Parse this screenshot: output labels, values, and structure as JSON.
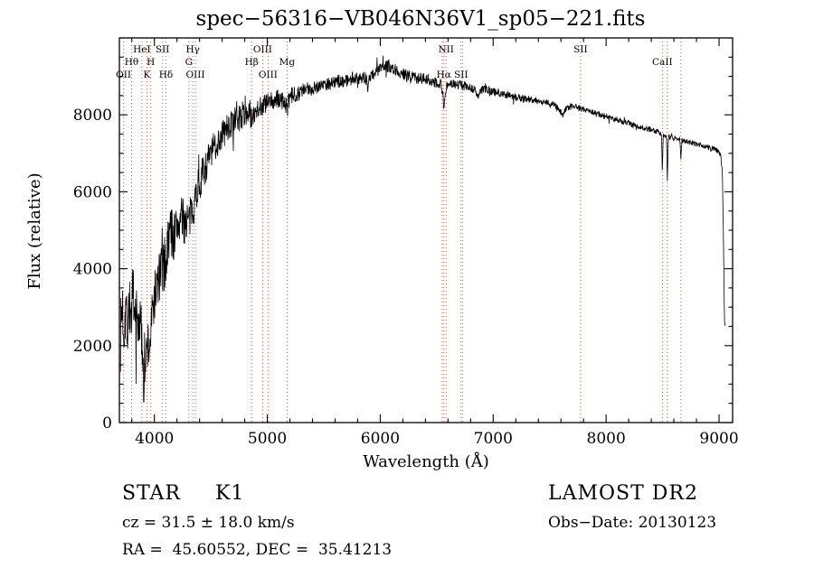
{
  "chart_data": {
    "type": "line",
    "title": "spec−56316−VB046N36V1_sp05−221.fits",
    "xlabel": "Wavelength (Å)",
    "ylabel": "Flux (relative)",
    "xlim": [
      3690,
      9120
    ],
    "ylim": [
      0,
      10000
    ],
    "x_ticks": [
      4000,
      5000,
      6000,
      7000,
      8000,
      9000
    ],
    "y_ticks": [
      0,
      2000,
      4000,
      6000,
      8000
    ],
    "x_minor_step": 200,
    "y_minor_step": 500,
    "grid": false,
    "legend": "none",
    "line_color": "#000000",
    "marker_line_color": "#a85a4a",
    "noise_seed": 7,
    "line_markers": [
      {
        "wavelength": 3727,
        "label": "OII",
        "row": 2
      },
      {
        "wavelength": 3798,
        "label": "Hθ",
        "row": 1
      },
      {
        "wavelength": 3889,
        "label": "HeI",
        "row": 0
      },
      {
        "wavelength": 3934,
        "label": "K",
        "row": 2
      },
      {
        "wavelength": 3968,
        "label": "H",
        "row": 1
      },
      {
        "wavelength": 4072,
        "label": "SII",
        "row": 0
      },
      {
        "wavelength": 4102,
        "label": "Hδ",
        "row": 2
      },
      {
        "wavelength": 4305,
        "label": "G",
        "row": 1
      },
      {
        "wavelength": 4340,
        "label": "Hγ",
        "row": 0
      },
      {
        "wavelength": 4363,
        "label": "OIII",
        "row": 2
      },
      {
        "wavelength": 4861,
        "label": "Hβ",
        "row": 1
      },
      {
        "wavelength": 4959,
        "label": "OIII",
        "row": 0
      },
      {
        "wavelength": 5007,
        "label": "OIII",
        "row": 2
      },
      {
        "wavelength": 5175,
        "label": "Mg",
        "row": 1
      },
      {
        "wavelength": 6548,
        "label": "",
        "row": -1
      },
      {
        "wavelength": 6563,
        "label": "Hα",
        "row": 2
      },
      {
        "wavelength": 6583,
        "label": "NII",
        "row": 0
      },
      {
        "wavelength": 6716,
        "label": "SII",
        "row": 2
      },
      {
        "wavelength": 6731,
        "label": "",
        "row": -1
      },
      {
        "wavelength": 7774,
        "label": "SII",
        "row": 0
      },
      {
        "wavelength": 8498,
        "label": "CaII",
        "row": 1
      },
      {
        "wavelength": 8542,
        "label": "",
        "row": -1
      },
      {
        "wavelength": 8662,
        "label": "",
        "row": -1
      }
    ],
    "series": [
      {
        "name": "spectrum",
        "envelope": [
          [
            3700,
            2200
          ],
          [
            3715,
            3100
          ],
          [
            3730,
            2400
          ],
          [
            3745,
            3050
          ],
          [
            3760,
            2500
          ],
          [
            3775,
            3150
          ],
          [
            3790,
            2650
          ],
          [
            3805,
            3200
          ],
          [
            3820,
            2500
          ],
          [
            3835,
            2900
          ],
          [
            3850,
            2400
          ],
          [
            3865,
            2800
          ],
          [
            3880,
            2400
          ],
          [
            3895,
            1900
          ],
          [
            3910,
            1600
          ],
          [
            3925,
            1500
          ],
          [
            3940,
            2100
          ],
          [
            3955,
            1900
          ],
          [
            3970,
            2400
          ],
          [
            3985,
            2900
          ],
          [
            4000,
            3300
          ],
          [
            4030,
            3600
          ],
          [
            4060,
            3900
          ],
          [
            4090,
            4100
          ],
          [
            4110,
            4400
          ],
          [
            4140,
            5100
          ],
          [
            4170,
            4800
          ],
          [
            4200,
            5100
          ],
          [
            4230,
            5300
          ],
          [
            4260,
            5200
          ],
          [
            4290,
            5300
          ],
          [
            4310,
            5200
          ],
          [
            4330,
            5500
          ],
          [
            4350,
            5700
          ],
          [
            4380,
            6100
          ],
          [
            4420,
            6400
          ],
          [
            4460,
            6700
          ],
          [
            4500,
            7000
          ],
          [
            4540,
            7200
          ],
          [
            4580,
            7400
          ],
          [
            4620,
            7550
          ],
          [
            4660,
            7700
          ],
          [
            4700,
            7800
          ],
          [
            4740,
            7900
          ],
          [
            4780,
            8000
          ],
          [
            4820,
            8050
          ],
          [
            4850,
            8050
          ],
          [
            4861,
            7750
          ],
          [
            4880,
            8100
          ],
          [
            4920,
            8200
          ],
          [
            4960,
            8250
          ],
          [
            5000,
            8300
          ],
          [
            5050,
            8350
          ],
          [
            5100,
            8400
          ],
          [
            5150,
            8350
          ],
          [
            5175,
            8150
          ],
          [
            5200,
            8450
          ],
          [
            5250,
            8550
          ],
          [
            5300,
            8600
          ],
          [
            5350,
            8650
          ],
          [
            5400,
            8700
          ],
          [
            5450,
            8750
          ],
          [
            5500,
            8800
          ],
          [
            5550,
            8820
          ],
          [
            5600,
            8850
          ],
          [
            5650,
            8880
          ],
          [
            5700,
            8900
          ],
          [
            5750,
            8930
          ],
          [
            5800,
            8960
          ],
          [
            5850,
            9000
          ],
          [
            5880,
            8900
          ],
          [
            5889,
            8600
          ],
          [
            5900,
            8950
          ],
          [
            5950,
            9100
          ],
          [
            6000,
            9200
          ],
          [
            6050,
            9280
          ],
          [
            6100,
            9250
          ],
          [
            6150,
            9150
          ],
          [
            6200,
            9050
          ],
          [
            6250,
            9000
          ],
          [
            6300,
            8980
          ],
          [
            6350,
            8950
          ],
          [
            6400,
            8930
          ],
          [
            6450,
            8900
          ],
          [
            6500,
            8850
          ],
          [
            6540,
            8800
          ],
          [
            6555,
            8500
          ],
          [
            6563,
            8100
          ],
          [
            6575,
            8600
          ],
          [
            6590,
            8780
          ],
          [
            6650,
            8800
          ],
          [
            6700,
            8780
          ],
          [
            6750,
            8750
          ],
          [
            6800,
            8720
          ],
          [
            6850,
            8600
          ],
          [
            6865,
            8450
          ],
          [
            6880,
            8600
          ],
          [
            6920,
            8680
          ],
          [
            6960,
            8640
          ],
          [
            7000,
            8600
          ],
          [
            7050,
            8570
          ],
          [
            7100,
            8540
          ],
          [
            7150,
            8500
          ],
          [
            7200,
            8470
          ],
          [
            7250,
            8440
          ],
          [
            7300,
            8420
          ],
          [
            7350,
            8390
          ],
          [
            7400,
            8360
          ],
          [
            7450,
            8330
          ],
          [
            7500,
            8300
          ],
          [
            7550,
            8250
          ],
          [
            7590,
            8100
          ],
          [
            7615,
            8000
          ],
          [
            7640,
            8150
          ],
          [
            7680,
            8220
          ],
          [
            7720,
            8200
          ],
          [
            7760,
            8180
          ],
          [
            7800,
            8150
          ],
          [
            7850,
            8100
          ],
          [
            7900,
            8050
          ],
          [
            7950,
            8000
          ],
          [
            8000,
            7960
          ],
          [
            8050,
            7920
          ],
          [
            8100,
            7870
          ],
          [
            8150,
            7820
          ],
          [
            8200,
            7780
          ],
          [
            8250,
            7730
          ],
          [
            8300,
            7690
          ],
          [
            8350,
            7650
          ],
          [
            8400,
            7610
          ],
          [
            8450,
            7570
          ],
          [
            8490,
            7530
          ],
          [
            8498,
            6500
          ],
          [
            8506,
            7480
          ],
          [
            8535,
            7460
          ],
          [
            8542,
            6350
          ],
          [
            8552,
            7430
          ],
          [
            8600,
            7400
          ],
          [
            8655,
            7360
          ],
          [
            8662,
            6850
          ],
          [
            8672,
            7330
          ],
          [
            8720,
            7300
          ],
          [
            8770,
            7260
          ],
          [
            8820,
            7220
          ],
          [
            8870,
            7180
          ],
          [
            8920,
            7140
          ],
          [
            8960,
            7100
          ],
          [
            9000,
            7050
          ],
          [
            9015,
            6950
          ],
          [
            9030,
            6500
          ],
          [
            9040,
            4500
          ],
          [
            9048,
            2700
          ],
          [
            9055,
            2500
          ]
        ],
        "noise": [
          [
            3700,
            900
          ],
          [
            3800,
            850
          ],
          [
            3900,
            800
          ],
          [
            4000,
            700
          ],
          [
            4100,
            750
          ],
          [
            4200,
            650
          ],
          [
            4300,
            550
          ],
          [
            4400,
            480
          ],
          [
            4500,
            420
          ],
          [
            4600,
            420
          ],
          [
            4700,
            380
          ],
          [
            4800,
            350
          ],
          [
            4900,
            320
          ],
          [
            5000,
            290
          ],
          [
            5100,
            260
          ],
          [
            5200,
            240
          ],
          [
            5300,
            210
          ],
          [
            5400,
            195
          ],
          [
            5500,
            180
          ],
          [
            5700,
            170
          ],
          [
            5900,
            170
          ],
          [
            6100,
            170
          ],
          [
            6300,
            160
          ],
          [
            6500,
            150
          ],
          [
            6700,
            125
          ],
          [
            6900,
            110
          ],
          [
            7100,
            100
          ],
          [
            7300,
            95
          ],
          [
            7500,
            90
          ],
          [
            7700,
            85
          ],
          [
            7900,
            80
          ],
          [
            8100,
            75
          ],
          [
            8300,
            72
          ],
          [
            8500,
            70
          ],
          [
            8700,
            68
          ],
          [
            8900,
            70
          ],
          [
            9055,
            75
          ]
        ]
      }
    ]
  },
  "annotations": {
    "class": "STAR",
    "subclass": "K1",
    "cz": "cz = 31.5 ± 18.0 km/s",
    "radec": "RA =  45.60552, DEC =  35.41213",
    "survey": "LAMOST DR2",
    "obs_date": "Obs−Date: 20130123"
  }
}
